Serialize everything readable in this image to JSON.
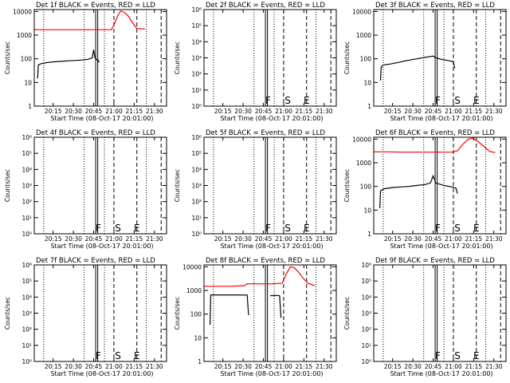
{
  "colors": {
    "events": "#000000",
    "lld": "#ff0000",
    "background": "#ffffff"
  },
  "common": {
    "xlabel": "Start Time (08-Oct-17 20:01:00)",
    "ylabel": "Counts/sec",
    "x_ticks": [
      "20:15",
      "20:30",
      "20:45",
      "21:00",
      "21:15",
      "21:30"
    ],
    "x_tick_minutes": [
      14,
      29,
      44,
      59,
      74,
      89
    ],
    "xlim_minutes": [
      0,
      98
    ],
    "dotted_x_minutes": [
      7,
      37,
      52,
      83
    ],
    "solid_x_minutes": [
      45.5,
      47
    ],
    "dashed_x_minutes": [
      59,
      76,
      94
    ],
    "markers": [
      {
        "label": "F",
        "x": 47.5
      },
      {
        "label": "S",
        "x": 62
      },
      {
        "label": "E",
        "x": 76
      }
    ]
  },
  "chart_data": [
    {
      "type": "line",
      "title": "Det 1f BLACK = Events, RED = LLD",
      "yscale": "log",
      "ylim": [
        1,
        12000
      ],
      "y_ticks": [
        "1",
        "10",
        "100",
        "1000",
        "10000"
      ],
      "y_tick_values": [
        1,
        10,
        100,
        1000,
        10000
      ],
      "show_markers": false,
      "series": [
        {
          "name": "Events",
          "color": "#000000",
          "points": [
            [
              2.5,
              15
            ],
            [
              3,
              55
            ],
            [
              5,
              62
            ],
            [
              10,
              70
            ],
            [
              15,
              75
            ],
            [
              20,
              78
            ],
            [
              25,
              82
            ],
            [
              30,
              85
            ],
            [
              35,
              88
            ],
            [
              40,
              95
            ],
            [
              43,
              110
            ],
            [
              44,
              240
            ],
            [
              45,
              110
            ],
            [
              46.5,
              90
            ],
            [
              47.5,
              85
            ],
            [
              48,
              70
            ]
          ]
        },
        {
          "name": "LLD",
          "color": "#ff0000",
          "points": [
            [
              0,
              1700
            ],
            [
              10,
              1700
            ],
            [
              20,
              1700
            ],
            [
              30,
              1700
            ],
            [
              40,
              1700
            ],
            [
              48,
              1700
            ],
            [
              54,
              1700
            ],
            [
              57,
              1700
            ],
            [
              59,
              2600
            ],
            [
              62,
              7000
            ],
            [
              64,
              10500
            ],
            [
              67,
              9000
            ],
            [
              70,
              6000
            ],
            [
              73,
              3200
            ],
            [
              76,
              1900
            ],
            [
              82,
              1800
            ]
          ]
        }
      ]
    },
    {
      "type": "line",
      "title": "Det 2f BLACK = Events, RED = LLD",
      "yscale": "log",
      "ylim": [
        1,
        1000000
      ],
      "y_ticks": [
        "10⁰",
        "10¹",
        "10²",
        "10³",
        "10⁴",
        "10⁵",
        "10⁶"
      ],
      "y_tick_values": [
        1,
        10,
        100,
        1000,
        10000,
        100000,
        1000000
      ],
      "show_markers": true,
      "series": []
    },
    {
      "type": "line",
      "title": "Det 3f BLACK = Events, RED = LLD",
      "yscale": "log",
      "ylim": [
        1,
        12000
      ],
      "y_ticks": [
        "1",
        "10",
        "100",
        "1000",
        "10000"
      ],
      "y_tick_values": [
        1,
        10,
        100,
        1000,
        10000
      ],
      "show_markers": true,
      "series": [
        {
          "name": "Events",
          "color": "#000000",
          "points": [
            [
              5,
              12
            ],
            [
              5.5,
              45
            ],
            [
              7,
              55
            ],
            [
              12,
              60
            ],
            [
              18,
              70
            ],
            [
              25,
              85
            ],
            [
              32,
              100
            ],
            [
              38,
              115
            ],
            [
              42,
              125
            ],
            [
              44,
              130
            ],
            [
              46,
              110
            ],
            [
              50,
              95
            ],
            [
              55,
              85
            ],
            [
              59,
              75
            ],
            [
              60,
              40
            ]
          ]
        }
      ]
    },
    {
      "type": "line",
      "title": "Det 4f BLACK = Events, RED = LLD",
      "yscale": "log",
      "ylim": [
        1,
        1000000
      ],
      "y_ticks": [
        "10⁰",
        "10¹",
        "10²",
        "10³",
        "10⁴",
        "10⁵",
        "10⁶"
      ],
      "y_tick_values": [
        1,
        10,
        100,
        1000,
        10000,
        100000,
        1000000
      ],
      "show_markers": true,
      "series": []
    },
    {
      "type": "line",
      "title": "Det 5f BLACK = Events, RED = LLD",
      "yscale": "log",
      "ylim": [
        1,
        1000000
      ],
      "y_ticks": [
        "10⁰",
        "10¹",
        "10²",
        "10³",
        "10⁴",
        "10⁵",
        "10⁶"
      ],
      "y_tick_values": [
        1,
        10,
        100,
        1000,
        10000,
        100000,
        1000000
      ],
      "show_markers": true,
      "series": []
    },
    {
      "type": "line",
      "title": "Det 6f BLACK = Events, RED = LLD",
      "yscale": "log",
      "ylim": [
        1,
        12000
      ],
      "y_ticks": [
        "1",
        "10",
        "100",
        "1000",
        "10000"
      ],
      "y_tick_values": [
        1,
        10,
        100,
        1000,
        10000
      ],
      "show_markers": true,
      "series": [
        {
          "name": "Events",
          "color": "#000000",
          "points": [
            [
              4.5,
              12
            ],
            [
              5,
              65
            ],
            [
              8,
              80
            ],
            [
              14,
              90
            ],
            [
              20,
              95
            ],
            [
              26,
              100
            ],
            [
              32,
              110
            ],
            [
              38,
              120
            ],
            [
              42,
              140
            ],
            [
              44,
              280
            ],
            [
              46,
              140
            ],
            [
              52,
              110
            ],
            [
              58,
              95
            ],
            [
              61,
              85
            ],
            [
              62,
              50
            ]
          ]
        },
        {
          "name": "LLD",
          "color": "#ff0000",
          "points": [
            [
              0,
              2900
            ],
            [
              10,
              2900
            ],
            [
              20,
              2800
            ],
            [
              30,
              2800
            ],
            [
              40,
              2800
            ],
            [
              50,
              2800
            ],
            [
              58,
              2800
            ],
            [
              62,
              3200
            ],
            [
              66,
              6000
            ],
            [
              70,
              10000
            ],
            [
              73,
              11000
            ],
            [
              76,
              9000
            ],
            [
              79,
              6500
            ],
            [
              83,
              4200
            ],
            [
              86,
              3000
            ],
            [
              90,
              2700
            ]
          ]
        }
      ]
    },
    {
      "type": "line",
      "title": "Det 7f BLACK = Events, RED = LLD",
      "yscale": "log",
      "ylim": [
        1,
        1000000
      ],
      "y_ticks": [
        "10⁰",
        "10¹",
        "10²",
        "10³",
        "10⁴",
        "10⁵",
        "10⁶"
      ],
      "y_tick_values": [
        1,
        10,
        100,
        1000,
        10000,
        100000,
        1000000
      ],
      "show_markers": true,
      "series": []
    },
    {
      "type": "line",
      "title": "Det 8f BLACK = Events, RED = LLD",
      "yscale": "log",
      "ylim": [
        1,
        12000
      ],
      "y_ticks": [
        "1",
        "10",
        "100",
        "1000",
        "10000"
      ],
      "y_tick_values": [
        1,
        10,
        100,
        1000,
        10000
      ],
      "show_markers": false,
      "series": [
        {
          "name": "Events",
          "color": "#000000",
          "points": [
            [
              4.5,
              35
            ],
            [
              5,
              650
            ],
            [
              15,
              650
            ],
            [
              25,
              650
            ],
            [
              32,
              640
            ],
            [
              33,
              90
            ]
          ]
        },
        {
          "name": "Events",
          "color": "#000000",
          "points": [
            [
              49,
              600
            ],
            [
              54,
              620
            ],
            [
              56,
              600
            ],
            [
              57,
              70
            ]
          ]
        },
        {
          "name": "LLD",
          "color": "#ff0000",
          "points": [
            [
              0,
              1500
            ],
            [
              10,
              1500
            ],
            [
              20,
              1500
            ],
            [
              30,
              1600
            ],
            [
              32,
              1900
            ],
            [
              40,
              1900
            ],
            [
              50,
              1900
            ],
            [
              58,
              2000
            ],
            [
              61,
              5000
            ],
            [
              64,
              10000
            ],
            [
              67,
              9000
            ],
            [
              70,
              6000
            ],
            [
              73,
              3500
            ],
            [
              77,
              2000
            ],
            [
              82,
              1600
            ]
          ]
        }
      ]
    },
    {
      "type": "line",
      "title": "Det 9f BLACK = Events, RED = LLD",
      "yscale": "log",
      "ylim": [
        1,
        1000000
      ],
      "y_ticks": [
        "10⁰",
        "10¹",
        "10²",
        "10³",
        "10⁴",
        "10⁵",
        "10⁶"
      ],
      "y_tick_values": [
        1,
        10,
        100,
        1000,
        10000,
        100000,
        1000000
      ],
      "show_markers": true,
      "series": []
    }
  ]
}
